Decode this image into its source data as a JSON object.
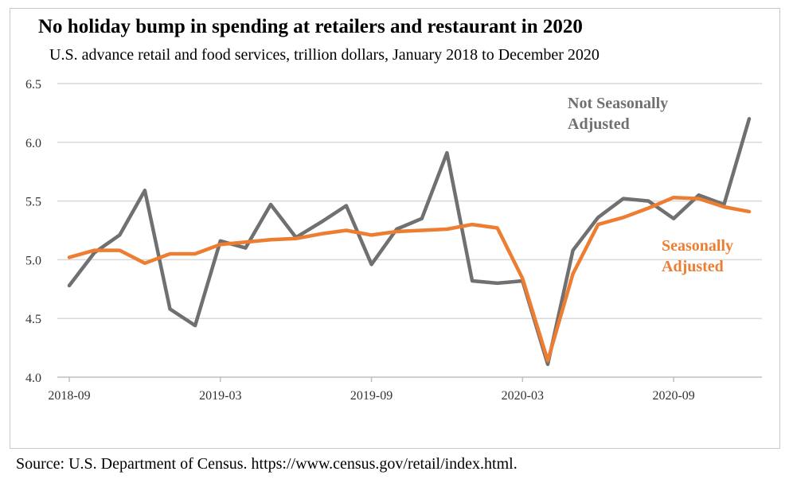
{
  "title": "No holiday bump in spending at retailers and restaurant in 2020",
  "subtitle": "U.S. advance retail and food services, trillion dollars, January 2018 to December 2020",
  "source": "Source: U.S. Department of Census. https://www.census.gov/retail/index.html.",
  "colors": {
    "nsa": "#707070",
    "sa": "#ed7d31",
    "grid": "#d9d9d9"
  },
  "chart_data": {
    "type": "line",
    "title": "No holiday bump in spending at retailers and restaurant in 2020",
    "subtitle": "U.S. advance retail and food services, trillion dollars, January 2018 to December 2020",
    "xlabel": "",
    "ylabel": "",
    "ylim": [
      4.0,
      6.5
    ],
    "yticks": [
      4.0,
      4.5,
      5.0,
      5.5,
      6.0,
      6.5
    ],
    "ytick_labels": [
      "4.0",
      "4.5",
      "5.0",
      "5.5",
      "6.0",
      "6.5"
    ],
    "x": [
      "2018-09",
      "2018-10",
      "2018-11",
      "2018-12",
      "2019-01",
      "2019-02",
      "2019-03",
      "2019-04",
      "2019-05",
      "2019-06",
      "2019-07",
      "2019-08",
      "2019-09",
      "2019-10",
      "2019-11",
      "2019-12",
      "2020-01",
      "2020-02",
      "2020-03",
      "2020-04",
      "2020-05",
      "2020-06",
      "2020-07",
      "2020-08",
      "2020-09",
      "2020-10",
      "2020-11",
      "2020-12"
    ],
    "xticks": [
      "2018-09",
      "2019-03",
      "2019-09",
      "2020-03",
      "2020-09"
    ],
    "grid": true,
    "legend": "none",
    "series": [
      {
        "name": "Not Seasonally Adjusted",
        "color": "#707070",
        "values": [
          4.78,
          5.06,
          5.21,
          5.59,
          4.58,
          4.44,
          5.16,
          5.1,
          5.47,
          5.19,
          5.32,
          5.46,
          4.96,
          5.26,
          5.35,
          5.91,
          4.82,
          4.8,
          4.82,
          4.11,
          5.08,
          5.36,
          5.52,
          5.5,
          5.35,
          5.55,
          5.47,
          6.2
        ]
      },
      {
        "name": "Seasonally Adjusted",
        "color": "#ed7d31",
        "values": [
          5.02,
          5.08,
          5.08,
          4.97,
          5.05,
          5.05,
          5.13,
          5.15,
          5.17,
          5.18,
          5.22,
          5.25,
          5.21,
          5.24,
          5.25,
          5.26,
          5.3,
          5.27,
          4.84,
          4.14,
          4.88,
          5.3,
          5.36,
          5.44,
          5.53,
          5.52,
          5.45,
          5.41
        ]
      }
    ]
  }
}
